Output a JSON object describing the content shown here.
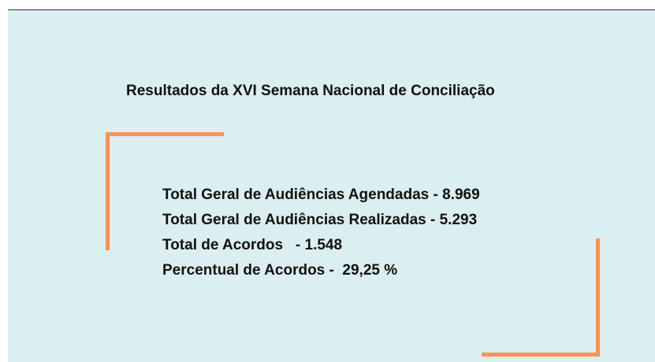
{
  "title": "Resultados da XVI Semana Nacional de Conciliação",
  "lines": [
    "Total Geral de Audiências Agendadas - 8.969",
    "Total Geral de Audiências Realizadas - 5.293",
    "Total de Acordos   - 1.548",
    "Percentual de Acordos -  29,25 %"
  ]
}
